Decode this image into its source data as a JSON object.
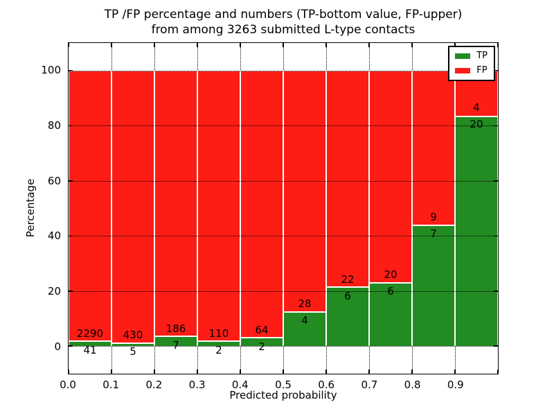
{
  "title": {
    "line1": "TP /FP percentage and numbers (TP-bottom value, FP-upper)",
    "line2": "from among 3263 submitted L-type contacts"
  },
  "chart_data": {
    "type": "bar",
    "subtype": "stacked-percentage-histogram",
    "title": "TP /FP percentage and numbers (TP-bottom value, FP-upper) from among 3263 submitted L-type contacts",
    "xlabel": "Predicted probability",
    "ylabel": "Percentage",
    "xlim": [
      0.0,
      1.0
    ],
    "ylim": [
      -10,
      110
    ],
    "x_tick_labels": [
      "0.0",
      "0.1",
      "0.2",
      "0.3",
      "0.4",
      "0.5",
      "0.6",
      "0.7",
      "0.8",
      "0.9"
    ],
    "y_tick_values": [
      0,
      20,
      40,
      60,
      80,
      100
    ],
    "grid": true,
    "total_submitted": 3263,
    "bins": [
      {
        "x0": 0.0,
        "x1": 0.1,
        "tp": 41,
        "fp": 2290
      },
      {
        "x0": 0.1,
        "x1": 0.2,
        "tp": 5,
        "fp": 430
      },
      {
        "x0": 0.2,
        "x1": 0.3,
        "tp": 7,
        "fp": 186
      },
      {
        "x0": 0.3,
        "x1": 0.4,
        "tp": 2,
        "fp": 110
      },
      {
        "x0": 0.4,
        "x1": 0.5,
        "tp": 2,
        "fp": 64
      },
      {
        "x0": 0.5,
        "x1": 0.6,
        "tp": 4,
        "fp": 28
      },
      {
        "x0": 0.6,
        "x1": 0.7,
        "tp": 6,
        "fp": 22
      },
      {
        "x0": 0.7,
        "x1": 0.8,
        "tp": 6,
        "fp": 20
      },
      {
        "x0": 0.8,
        "x1": 0.9,
        "tp": 7,
        "fp": 9
      },
      {
        "x0": 0.9,
        "x1": 1.0,
        "tp": 20,
        "fp": 4
      }
    ],
    "legend": {
      "position": "upper right",
      "entries": [
        {
          "label": "TP",
          "color": "#228b22"
        },
        {
          "label": "FP",
          "color": "#fd1d15"
        }
      ]
    }
  },
  "colors": {
    "tp_green": "#228b22",
    "fp_red": "#fd1d15",
    "grid_black": "#000000",
    "bar_edge_white": "#ffffff",
    "background": "#ffffff"
  }
}
